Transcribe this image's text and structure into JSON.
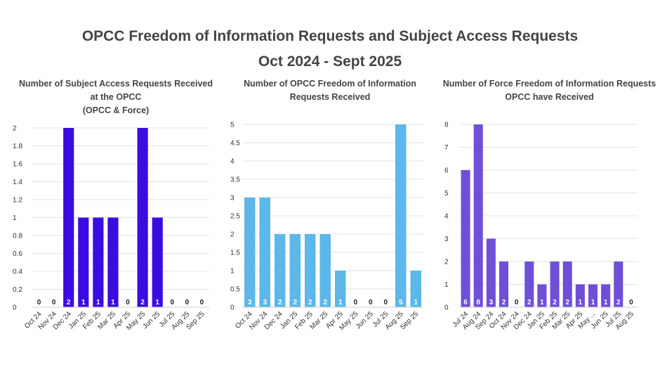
{
  "header": {
    "title_line1": "OPCC Freedom of Information Requests and Subject Access Requests",
    "title_line2": "Oct 2024 - Sept 2025"
  },
  "chart_data": [
    {
      "type": "bar",
      "title_lines": [
        "Number of Subject Access Requests Received",
        "at the OPCC",
        "(OPCC & Force)"
      ],
      "categories": [
        "Oct 24",
        "Nov 24",
        "Dec 24",
        "Jan 25",
        "Feb 25",
        "Mar 25",
        "Apr 25",
        "May 25",
        "Jun 25",
        "Jul 25",
        "Aug 25",
        "Sep 25"
      ],
      "values": [
        0,
        0,
        2,
        1,
        1,
        1,
        0,
        2,
        1,
        0,
        0,
        0
      ],
      "data_labels": [
        "0",
        "0",
        "2",
        "1",
        "1",
        "1",
        "0",
        "2",
        "1",
        "0",
        "0",
        "0"
      ],
      "ylim": [
        0,
        2
      ],
      "yticks": [
        "0",
        "0.2",
        "0.4",
        "0.6",
        "0.8",
        "1",
        "1.2",
        "1.4",
        "1.6",
        "1.8",
        "2"
      ],
      "ytick_values": [
        0,
        0.2,
        0.4,
        0.6,
        0.8,
        1,
        1.2,
        1.4,
        1.6,
        1.8,
        2
      ],
      "color": "#3a0ce0",
      "grid": true
    },
    {
      "type": "bar",
      "title_lines": [
        "Number of OPCC Freedom of Information",
        "Requests Received"
      ],
      "categories": [
        "Oct 24",
        "Nov 24",
        "Dec 24",
        "Jan 25",
        "Feb 25",
        "Mar 25",
        "Apr 25",
        "May 25",
        "Jun 25",
        "Jul 25",
        "Aug 25",
        "Sep 25"
      ],
      "values": [
        3,
        3,
        2,
        2,
        2,
        2,
        1,
        0,
        0,
        0,
        5,
        1
      ],
      "data_labels": [
        "3",
        "3",
        "2",
        "2",
        "2",
        "2",
        "1",
        "0",
        "0",
        "0",
        "5",
        "1"
      ],
      "ylim": [
        0,
        5
      ],
      "yticks": [
        "0",
        "0.5",
        "1",
        "1.5",
        "2",
        "2.5",
        "3",
        "3.5",
        "4",
        "4.5",
        "5"
      ],
      "ytick_values": [
        0,
        0.5,
        1,
        1.5,
        2,
        2.5,
        3,
        3.5,
        4,
        4.5,
        5
      ],
      "color": "#5cb8e8",
      "grid": true
    },
    {
      "type": "bar",
      "title_lines": [
        "Number of Force Freedom of Information Requests",
        "OPCC have Received"
      ],
      "categories": [
        "Jul 24",
        "Aug 24",
        "Sep 24",
        "Oct 24",
        "Nov 24",
        "Dec 24",
        "Jan 25",
        "Feb 25",
        "Mar 25",
        "Apr 25",
        "May ...",
        "Jun 25",
        "Jul 25",
        "Aug 25"
      ],
      "values": [
        6,
        8,
        3,
        2,
        0,
        2,
        1,
        2,
        2,
        1,
        1,
        1,
        2,
        0
      ],
      "data_labels": [
        "6",
        "8",
        "3",
        "2",
        "0",
        "2",
        "1",
        "2",
        "2",
        "1",
        "1",
        "1",
        "2",
        "0"
      ],
      "ylim": [
        0,
        8
      ],
      "yticks": [
        "0",
        "1",
        "2",
        "3",
        "4",
        "5",
        "6",
        "7",
        "8"
      ],
      "ytick_values": [
        0,
        1,
        2,
        3,
        4,
        5,
        6,
        7,
        8
      ],
      "color": "#6f4fd8",
      "grid": true
    }
  ]
}
